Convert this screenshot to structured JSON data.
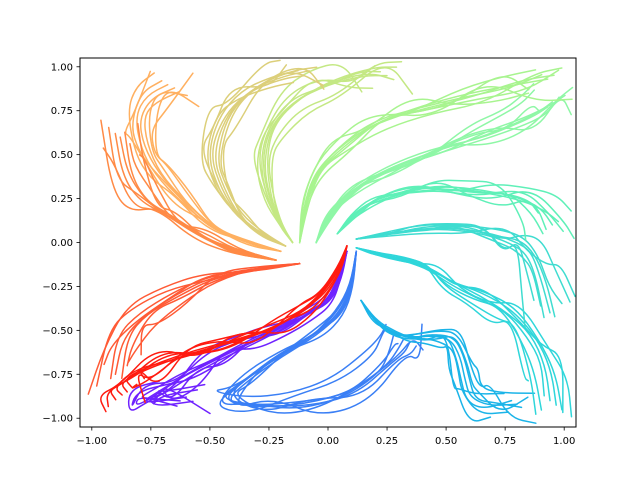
{
  "chart_data": {
    "type": "line",
    "title": "",
    "xlabel": "",
    "ylabel": "",
    "xlim": [
      -1.05,
      1.05
    ],
    "ylim": [
      -1.05,
      1.05
    ],
    "grid": false,
    "legend": "none",
    "colormap": "rainbow",
    "x_ticks": [
      -1.0,
      -0.75,
      -0.5,
      -0.25,
      0.0,
      0.25,
      0.5,
      0.75,
      1.0
    ],
    "x_tick_labels": [
      "−1.00",
      "−0.75",
      "−0.50",
      "−0.25",
      "0.00",
      "0.25",
      "0.50",
      "0.75",
      "1.00"
    ],
    "y_ticks": [
      -1.0,
      -0.75,
      -0.5,
      -0.25,
      0.0,
      0.25,
      0.5,
      0.75,
      1.0
    ],
    "y_tick_labels": [
      "−1.00",
      "−0.75",
      "−0.50",
      "−0.25",
      "0.00",
      "0.25",
      "0.50",
      "0.75",
      "1.00"
    ],
    "bundles": [
      {
        "color": "#6f22ff",
        "x": [
          0.08,
          0.05,
          0.0,
          -0.1,
          -0.22,
          -0.35,
          -0.48,
          -0.6,
          -0.72,
          -0.78,
          -0.75,
          -0.6
        ],
        "y": [
          -0.05,
          -0.2,
          -0.33,
          -0.42,
          -0.5,
          -0.58,
          -0.66,
          -0.75,
          -0.85,
          -0.9,
          -0.91,
          -0.88
        ]
      },
      {
        "color": "#3a7ff5",
        "x": [
          0.12,
          0.1,
          0.05,
          -0.05,
          -0.2,
          -0.35,
          -0.45,
          -0.3,
          -0.1,
          0.1,
          0.25,
          0.3,
          0.32
        ],
        "y": [
          -0.05,
          -0.25,
          -0.4,
          -0.52,
          -0.64,
          -0.78,
          -0.9,
          -0.94,
          -0.92,
          -0.85,
          -0.7,
          -0.6,
          -0.55
        ]
      },
      {
        "color": "#1bb4e8",
        "x": [
          0.14,
          0.2,
          0.28,
          0.36,
          0.44,
          0.52,
          0.56,
          0.58,
          0.6,
          0.68,
          0.8
        ],
        "y": [
          -0.33,
          -0.45,
          -0.52,
          -0.54,
          -0.53,
          -0.55,
          -0.65,
          -0.78,
          -0.88,
          -0.93,
          -0.92
        ]
      },
      {
        "color": "#2fd6da",
        "x": [
          0.12,
          0.22,
          0.34,
          0.44,
          0.52,
          0.64,
          0.76,
          0.86,
          0.92,
          0.94
        ],
        "y": [
          -0.03,
          -0.07,
          -0.1,
          -0.15,
          -0.22,
          -0.3,
          -0.4,
          -0.52,
          -0.7,
          -0.9
        ]
      },
      {
        "color": "#3fdcd0",
        "x": [
          0.12,
          0.25,
          0.4,
          0.55,
          0.7,
          0.8,
          0.86,
          0.9,
          0.94
        ],
        "y": [
          0.02,
          0.05,
          0.08,
          0.08,
          0.05,
          0.0,
          -0.05,
          -0.2,
          -0.4
        ]
      },
      {
        "color": "#5ff0b8",
        "x": [
          0.04,
          0.1,
          0.2,
          0.35,
          0.5,
          0.65,
          0.8,
          0.9,
          0.95
        ],
        "y": [
          0.05,
          0.15,
          0.25,
          0.3,
          0.32,
          0.3,
          0.26,
          0.2,
          0.1
        ]
      },
      {
        "color": "#8ff7a6",
        "x": [
          -0.05,
          0.0,
          0.1,
          0.25,
          0.45,
          0.65,
          0.8,
          0.9,
          0.95
        ],
        "y": [
          0.0,
          0.15,
          0.3,
          0.42,
          0.52,
          0.6,
          0.68,
          0.75,
          0.8
        ]
      },
      {
        "color": "#a8f48f",
        "x": [
          -0.12,
          -0.1,
          -0.05,
          0.05,
          0.2,
          0.4,
          0.6,
          0.8,
          0.93
        ],
        "y": [
          0.0,
          0.2,
          0.4,
          0.55,
          0.68,
          0.78,
          0.85,
          0.9,
          0.93
        ]
      },
      {
        "color": "#c4e884",
        "x": [
          -0.15,
          -0.2,
          -0.25,
          -0.28,
          -0.25,
          -0.15,
          0.0,
          0.15,
          0.25
        ],
        "y": [
          0.0,
          0.1,
          0.25,
          0.45,
          0.65,
          0.8,
          0.9,
          0.95,
          0.95
        ]
      },
      {
        "color": "#dccf7a",
        "x": [
          -0.18,
          -0.28,
          -0.38,
          -0.45,
          -0.5,
          -0.45,
          -0.35,
          -0.2,
          -0.1
        ],
        "y": [
          -0.02,
          0.05,
          0.15,
          0.3,
          0.5,
          0.7,
          0.85,
          0.93,
          0.95
        ]
      },
      {
        "color": "#ffb060",
        "x": [
          -0.2,
          -0.35,
          -0.5,
          -0.62,
          -0.72,
          -0.78,
          -0.8,
          -0.75,
          -0.65
        ],
        "y": [
          -0.05,
          0.0,
          0.1,
          0.25,
          0.4,
          0.55,
          0.7,
          0.82,
          0.88
        ]
      },
      {
        "color": "#ff8a45",
        "x": [
          -0.22,
          -0.4,
          -0.55,
          -0.68,
          -0.78,
          -0.85,
          -0.88
        ],
        "y": [
          -0.1,
          -0.05,
          0.05,
          0.15,
          0.25,
          0.4,
          0.6
        ]
      },
      {
        "color": "#ff5a35",
        "x": [
          -0.12,
          -0.3,
          -0.5,
          -0.65,
          -0.78,
          -0.87,
          -0.9
        ],
        "y": [
          -0.12,
          -0.15,
          -0.2,
          -0.3,
          -0.42,
          -0.55,
          -0.75
        ]
      },
      {
        "color": "#ff1b10",
        "x": [
          0.08,
          0.05,
          -0.02,
          -0.1,
          -0.22,
          -0.35,
          -0.5,
          -0.65,
          -0.8,
          -0.88,
          -0.85
        ],
        "y": [
          -0.02,
          -0.15,
          -0.28,
          -0.38,
          -0.48,
          -0.55,
          -0.6,
          -0.66,
          -0.74,
          -0.8,
          -0.85
        ]
      }
    ]
  }
}
